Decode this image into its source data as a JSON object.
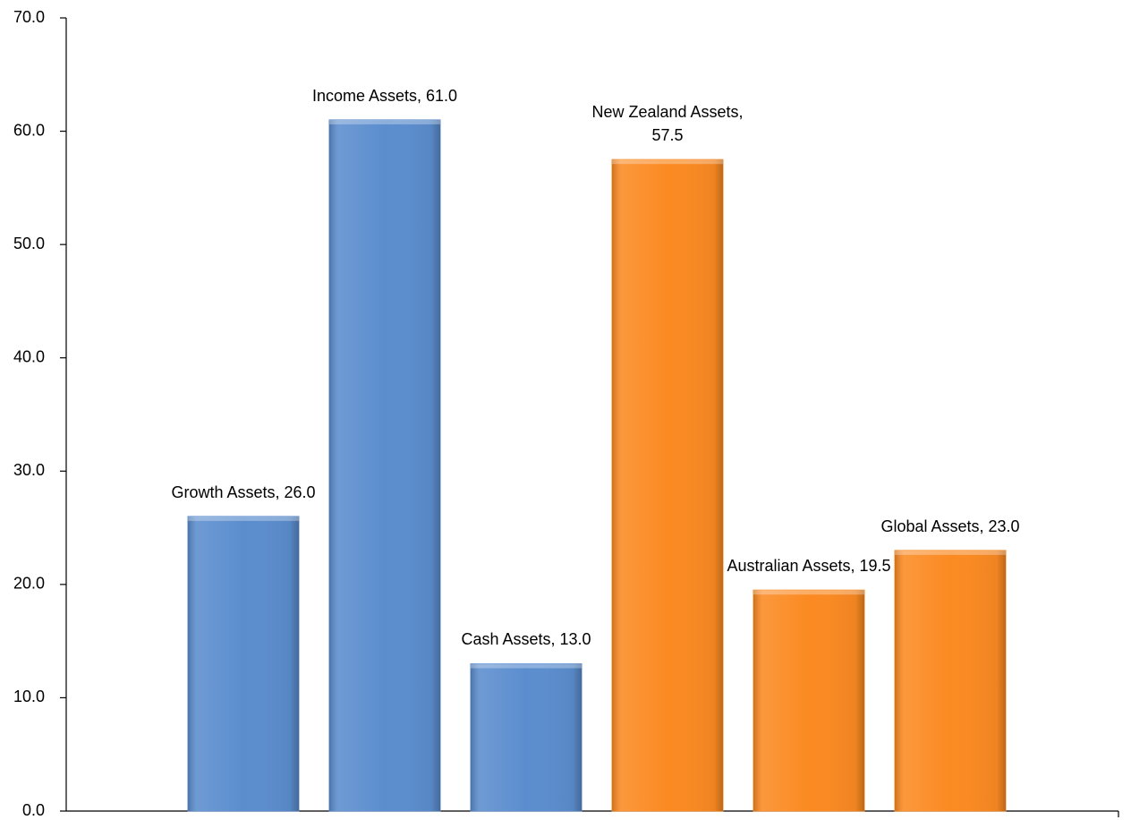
{
  "chart_data": {
    "type": "bar",
    "values": [
      26.0,
      61.0,
      13.0,
      57.5,
      19.5,
      23.0
    ],
    "value_labels": [
      "Growth Assets, 26.0",
      "Income Assets, 61.0",
      "Cash Assets, 13.0",
      "New Zealand Assets, 57.5",
      "Australian Assets, 19.5",
      "Global Assets, 23.0"
    ],
    "colors": [
      "#5b8dce",
      "#5b8dce",
      "#5b8dce",
      "#fb8a22",
      "#fb8a22",
      "#fb8a22"
    ],
    "ylim": [
      0,
      70
    ],
    "yticks": [
      {
        "value": 0,
        "label": "0.0"
      },
      {
        "value": 10,
        "label": "10.0"
      },
      {
        "value": 20,
        "label": "20.0"
      },
      {
        "value": 30,
        "label": "30.0"
      },
      {
        "value": 40,
        "label": "40.0"
      },
      {
        "value": 50,
        "label": "50.0"
      },
      {
        "value": 60,
        "label": "60.0"
      },
      {
        "value": 70,
        "label": "70.0"
      }
    ],
    "grid": false
  }
}
